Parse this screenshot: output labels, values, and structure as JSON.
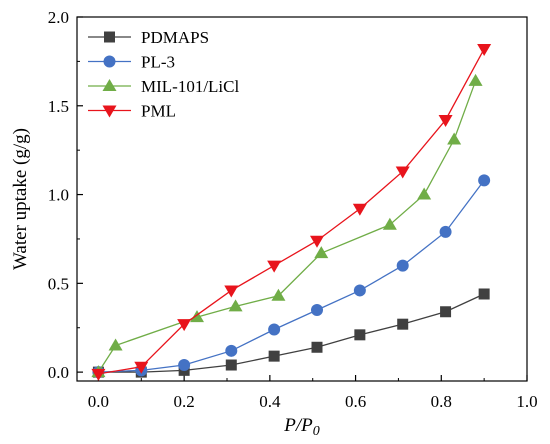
{
  "chart_data": {
    "type": "line",
    "title": "",
    "xlabel": "P/P",
    "xlabel_sub": "0",
    "ylabel": "Water uptake (g/g)",
    "xlim": [
      -0.05,
      1.0
    ],
    "ylim": [
      -0.05,
      2.0
    ],
    "x_ticks": [
      "0.0",
      "0.2",
      "0.4",
      "0.6",
      "0.8",
      "1.0"
    ],
    "y_ticks": [
      "0.0",
      "0.5",
      "1.0",
      "1.5",
      "2.0"
    ],
    "grid": false,
    "legend_position": "top-left",
    "series": [
      {
        "name": "PDMAPS",
        "color": "#404040",
        "marker": "square",
        "x": [
          0.0,
          0.1,
          0.2,
          0.31,
          0.41,
          0.51,
          0.61,
          0.71,
          0.81,
          0.9
        ],
        "y": [
          0.0,
          0.0,
          0.01,
          0.04,
          0.09,
          0.14,
          0.21,
          0.27,
          0.34,
          0.44
        ]
      },
      {
        "name": "PL-3",
        "color": "#4472c4",
        "marker": "circle",
        "x": [
          0.0,
          0.1,
          0.2,
          0.31,
          0.41,
          0.51,
          0.61,
          0.71,
          0.81,
          0.9
        ],
        "y": [
          0.0,
          0.01,
          0.04,
          0.12,
          0.24,
          0.35,
          0.46,
          0.6,
          0.79,
          1.08
        ]
      },
      {
        "name": "MIL-101/LiCl",
        "color": "#70ad47",
        "marker": "triangle-up",
        "x": [
          0.0,
          0.04,
          0.23,
          0.32,
          0.42,
          0.52,
          0.68,
          0.76,
          0.83,
          0.88
        ],
        "y": [
          0.0,
          0.15,
          0.31,
          0.37,
          0.43,
          0.67,
          0.83,
          1.0,
          1.31,
          1.64
        ]
      },
      {
        "name": "PML",
        "color": "#e8141c",
        "marker": "triangle-down",
        "x": [
          0.0,
          0.1,
          0.2,
          0.31,
          0.41,
          0.51,
          0.61,
          0.71,
          0.81,
          0.9
        ],
        "y": [
          -0.01,
          0.03,
          0.27,
          0.46,
          0.6,
          0.74,
          0.92,
          1.13,
          1.42,
          1.82
        ]
      }
    ]
  }
}
